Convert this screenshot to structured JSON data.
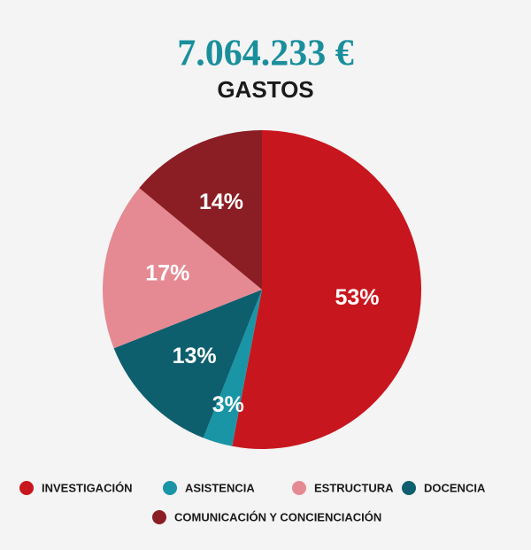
{
  "chart_data": {
    "type": "pie",
    "title": "7.064.233 €",
    "subtitle": "GASTOS",
    "categories": [
      "INVESTIGACIÓN",
      "ASISTENCIA",
      "DOCENCIA",
      "ESTRUCTURA",
      "COMUNICACIÓN Y CONCIENCIACIÓN"
    ],
    "values": [
      53,
      3,
      13,
      17,
      14
    ],
    "value_labels": [
      "53%",
      "3%",
      "13%",
      "17%",
      "14%"
    ],
    "colors": [
      "#c8161e",
      "#1a95a5",
      "#0e5f6e",
      "#e58a93",
      "#8b1e24"
    ]
  }
}
